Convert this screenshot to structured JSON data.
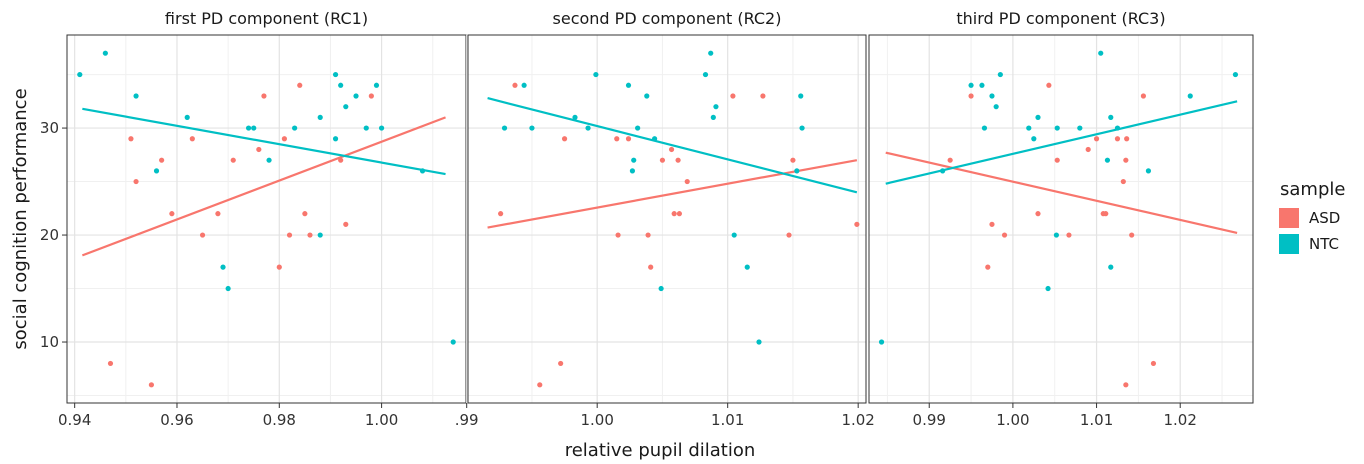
{
  "chart_data": {
    "type": "scatter",
    "ylabel": "social cognition performance",
    "xlabel": "relative pupil dilation",
    "ylim": [
      4.3,
      38.7
    ],
    "y_ticks": [
      10,
      20,
      30
    ],
    "grid": true,
    "legend": {
      "title": "sample",
      "placement": "right",
      "entries": [
        {
          "name": "ASD",
          "color": "#F8766D"
        },
        {
          "name": "NTC",
          "color": "#00BFC4"
        }
      ]
    },
    "facets": [
      {
        "title": "first PD component (RC1)",
        "xlim": [
          0.9385,
          1.0165
        ],
        "x_ticks": [
          {
            "value": 0.94,
            "label": "0.94"
          },
          {
            "value": 0.96,
            "label": "0.96"
          },
          {
            "value": 0.98,
            "label": "0.98"
          },
          {
            "value": 1.0,
            "label": "1.00"
          }
        ],
        "series": [
          {
            "name": "ASD",
            "points": [
              [
                0.947,
                8
              ],
              [
                0.951,
                29
              ],
              [
                0.952,
                25
              ],
              [
                0.955,
                6
              ],
              [
                0.957,
                27
              ],
              [
                0.959,
                22
              ],
              [
                0.963,
                29
              ],
              [
                0.965,
                20
              ],
              [
                0.968,
                22
              ],
              [
                0.971,
                27
              ],
              [
                0.976,
                28
              ],
              [
                0.977,
                33
              ],
              [
                0.98,
                17
              ],
              [
                0.981,
                29
              ],
              [
                0.982,
                20
              ],
              [
                0.984,
                34
              ],
              [
                0.985,
                22
              ],
              [
                0.986,
                20
              ],
              [
                0.992,
                27
              ],
              [
                0.993,
                21
              ],
              [
                0.998,
                33
              ]
            ],
            "fit": [
              [
                0.9415,
                18.1
              ],
              [
                1.0125,
                31.0
              ]
            ]
          },
          {
            "name": "NTC",
            "points": [
              [
                0.941,
                35
              ],
              [
                0.946,
                37
              ],
              [
                0.952,
                33
              ],
              [
                0.956,
                26
              ],
              [
                0.962,
                31
              ],
              [
                0.969,
                17
              ],
              [
                0.97,
                15
              ],
              [
                0.974,
                30
              ],
              [
                0.975,
                30
              ],
              [
                0.978,
                27
              ],
              [
                0.983,
                30
              ],
              [
                0.988,
                31
              ],
              [
                0.988,
                20
              ],
              [
                0.991,
                35
              ],
              [
                0.991,
                29
              ],
              [
                0.992,
                34
              ],
              [
                0.993,
                32
              ],
              [
                0.995,
                33
              ],
              [
                0.997,
                30
              ],
              [
                0.999,
                34
              ],
              [
                1.0,
                30
              ],
              [
                1.008,
                26
              ],
              [
                1.014,
                10
              ]
            ],
            "fit": [
              [
                0.9415,
                31.8
              ],
              [
                1.0125,
                25.7
              ]
            ]
          }
        ]
      },
      {
        "title": "second PD component (RC2)",
        "xlim": [
          0.9901,
          1.0206
        ],
        "x_ticks": [
          {
            "value": 0.99,
            "label": ".99"
          },
          {
            "value": 1.0,
            "label": "1.00"
          },
          {
            "value": 1.01,
            "label": "1.01"
          },
          {
            "value": 1.02,
            "label": "1.02"
          }
        ],
        "series": [
          {
            "name": "ASD",
            "points": [
              [
                0.9926,
                22
              ],
              [
                0.9937,
                34
              ],
              [
                0.9956,
                6
              ],
              [
                0.9972,
                8
              ],
              [
                0.9975,
                29
              ],
              [
                1.0015,
                29
              ],
              [
                1.0016,
                20
              ],
              [
                1.0024,
                29
              ],
              [
                1.0039,
                20
              ],
              [
                1.0041,
                17
              ],
              [
                1.005,
                27
              ],
              [
                1.0057,
                28
              ],
              [
                1.0059,
                22
              ],
              [
                1.0062,
                27
              ],
              [
                1.0063,
                22
              ],
              [
                1.0069,
                25
              ],
              [
                1.0104,
                33
              ],
              [
                1.0127,
                33
              ],
              [
                1.0147,
                20
              ],
              [
                1.015,
                27
              ],
              [
                1.0199,
                21
              ]
            ],
            "fit": [
              [
                0.9916,
                20.7
              ],
              [
                1.0199,
                27.0
              ]
            ]
          },
          {
            "name": "NTC",
            "points": [
              [
                0.9929,
                30
              ],
              [
                0.9944,
                34
              ],
              [
                0.995,
                30
              ],
              [
                0.9983,
                31
              ],
              [
                0.9993,
                30
              ],
              [
                0.9999,
                35
              ],
              [
                1.0024,
                34
              ],
              [
                1.0027,
                26
              ],
              [
                1.0028,
                27
              ],
              [
                1.0031,
                30
              ],
              [
                1.0038,
                33
              ],
              [
                1.0044,
                29
              ],
              [
                1.0049,
                15
              ],
              [
                1.0083,
                35
              ],
              [
                1.0087,
                37
              ],
              [
                1.0089,
                31
              ],
              [
                1.0091,
                32
              ],
              [
                1.0105,
                20
              ],
              [
                1.0115,
                17
              ],
              [
                1.0124,
                10
              ],
              [
                1.0153,
                26
              ],
              [
                1.0156,
                33
              ],
              [
                1.0157,
                30
              ]
            ],
            "fit": [
              [
                0.9916,
                32.8
              ],
              [
                1.0199,
                24.0
              ]
            ]
          }
        ]
      },
      {
        "title": "third PD component (RC3)",
        "xlim": [
          0.9828,
          1.0287
        ],
        "x_ticks": [
          {
            "value": 0.99,
            "label": "0.99"
          },
          {
            "value": 1.0,
            "label": "1.00"
          },
          {
            "value": 1.01,
            "label": "1.01"
          },
          {
            "value": 1.02,
            "label": "1.02"
          }
        ],
        "series": [
          {
            "name": "ASD",
            "points": [
              [
                0.9925,
                27
              ],
              [
                0.995,
                33
              ],
              [
                0.997,
                17
              ],
              [
                0.9975,
                21
              ],
              [
                0.999,
                20
              ],
              [
                1.003,
                22
              ],
              [
                1.0043,
                34
              ],
              [
                1.0053,
                27
              ],
              [
                1.0067,
                20
              ],
              [
                1.009,
                28
              ],
              [
                1.01,
                29
              ],
              [
                1.0108,
                22
              ],
              [
                1.0111,
                22
              ],
              [
                1.0125,
                29
              ],
              [
                1.0132,
                25
              ],
              [
                1.0135,
                27
              ],
              [
                1.0135,
                6
              ],
              [
                1.0136,
                29
              ],
              [
                1.0142,
                20
              ],
              [
                1.0156,
                33
              ],
              [
                1.0168,
                8
              ]
            ],
            "fit": [
              [
                0.9848,
                27.7
              ],
              [
                1.0268,
                20.2
              ]
            ]
          },
          {
            "name": "NTC",
            "points": [
              [
                0.9843,
                10
              ],
              [
                0.9916,
                26
              ],
              [
                0.995,
                34
              ],
              [
                0.9963,
                34
              ],
              [
                0.9966,
                30
              ],
              [
                0.9975,
                33
              ],
              [
                0.998,
                32
              ],
              [
                0.9985,
                35
              ],
              [
                1.0019,
                30
              ],
              [
                1.0025,
                29
              ],
              [
                1.003,
                31
              ],
              [
                1.0042,
                15
              ],
              [
                1.0052,
                20
              ],
              [
                1.0053,
                30
              ],
              [
                1.008,
                30
              ],
              [
                1.0105,
                37
              ],
              [
                1.0113,
                27
              ],
              [
                1.0117,
                17
              ],
              [
                1.0117,
                31
              ],
              [
                1.0125,
                30
              ],
              [
                1.0162,
                26
              ],
              [
                1.0212,
                33
              ],
              [
                1.0266,
                35
              ]
            ],
            "fit": [
              [
                0.9848,
                24.8
              ],
              [
                1.0268,
                32.5
              ]
            ]
          }
        ]
      }
    ]
  }
}
